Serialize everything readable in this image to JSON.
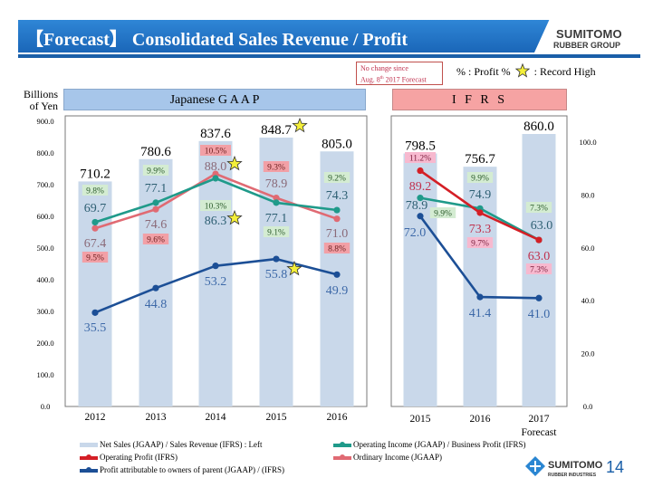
{
  "header": {
    "title": "【Forecast】 Consolidated Sales Revenue / Profit",
    "logo_line1": "SUMITOMO",
    "logo_line2": "RUBBER GROUP"
  },
  "note": {
    "line1": "No change since",
    "line2_prefix": "Aug. 8",
    "line2_sup": "th",
    "line2_suffix": " 2017 Forecast"
  },
  "key": {
    "percent_label": "% : Profit %",
    "star_label": ": Record  High"
  },
  "panels": {
    "jgaap": "Japanese G A A P",
    "ifrs": "I F R S"
  },
  "y_unit_line1": "Billions",
  "y_unit_line2": "of Yen",
  "footer": {
    "logo_line1": "SUMITOMO",
    "logo_line2": "RUBBER INDUSTRIES",
    "page_number": "14"
  },
  "colors": {
    "bar": "#c9d8ea",
    "operating_income": "#1f9a8a",
    "ordinary_income": "#e06a73",
    "operating_profit": "#d41f26",
    "net_profit": "#1c4f96",
    "pct_green_bg": "#d4ecd2",
    "pct_red_bg": "#f2a0a6",
    "pct_pink_bg": "#f7b9cf"
  },
  "chart_data": [
    {
      "type": "bar+line",
      "title": "Japanese GAAP",
      "categories": [
        "2012",
        "2013",
        "2014",
        "2015",
        "2016"
      ],
      "left_axis": {
        "label": "Billions of Yen",
        "range": [
          0,
          900
        ],
        "ticks": [
          "0.0",
          "100.0",
          "200.0",
          "300.0",
          "400.0",
          "500.0",
          "600.0",
          "700.0",
          "800.0",
          "900.0"
        ]
      },
      "right_axis": {
        "range": [
          0,
          100
        ]
      },
      "series": [
        {
          "name": "Net Sales (JGAAP)",
          "kind": "bar",
          "axis": "left",
          "values": [
            710.2,
            780.6,
            837.6,
            848.7,
            805.0
          ],
          "record_high": [
            false,
            false,
            false,
            true,
            false
          ]
        },
        {
          "name": "Operating Income (JGAAP)",
          "kind": "line",
          "axis": "right",
          "values": [
            69.7,
            77.1,
            86.3,
            77.1,
            74.3
          ],
          "profit_pct": [
            "9.8%",
            "9.9%",
            "10.3%",
            "9.1%",
            "9.2%"
          ],
          "record_high": [
            false,
            false,
            true,
            false,
            false
          ]
        },
        {
          "name": "Ordinary Income (JGAAP)",
          "kind": "line",
          "axis": "right",
          "values": [
            67.4,
            74.6,
            88.0,
            78.9,
            71.0
          ],
          "profit_pct": [
            "9.5%",
            "9.6%",
            "10.5%",
            "9.3%",
            "8.8%"
          ],
          "record_high": [
            false,
            false,
            true,
            false,
            false
          ]
        },
        {
          "name": "Profit attributable to owners of parent (JGAAP)",
          "kind": "line",
          "axis": "right",
          "values": [
            35.5,
            44.8,
            53.2,
            55.8,
            49.9
          ],
          "record_high": [
            false,
            false,
            false,
            true,
            false
          ]
        }
      ]
    },
    {
      "type": "bar+line",
      "title": "IFRS",
      "categories": [
        "2015",
        "2016",
        "2017"
      ],
      "category_sublabels": [
        "",
        "",
        "Forecast"
      ],
      "left_axis": {
        "range": [
          0,
          900
        ]
      },
      "right_axis": {
        "range": [
          0,
          100
        ],
        "ticks": [
          "0.0",
          "20.0",
          "40.0",
          "60.0",
          "80.0",
          "100.0"
        ]
      },
      "series": [
        {
          "name": "Sales Revenue (IFRS)",
          "kind": "bar",
          "axis": "left",
          "values": [
            798.5,
            756.7,
            860.0
          ],
          "record_high": [
            false,
            false,
            false
          ]
        },
        {
          "name": "Business Profit (IFRS)",
          "kind": "line",
          "axis": "right",
          "values": [
            78.9,
            74.9,
            63.0
          ],
          "profit_pct": [
            "9.9%",
            "9.9%",
            "7.3%"
          ]
        },
        {
          "name": "Operating Profit (IFRS)",
          "kind": "line",
          "axis": "right",
          "values": [
            89.2,
            73.3,
            63.0
          ],
          "profit_pct": [
            "11.2%",
            "9.7%",
            "7.3%"
          ]
        },
        {
          "name": "Profit attributable to owners of parent (IFRS)",
          "kind": "line",
          "axis": "right",
          "values": [
            72.0,
            41.4,
            41.0
          ]
        }
      ]
    }
  ],
  "legend": [
    {
      "key": "bar",
      "label": "Net Sales (JGAAP) / Sales Revenue (IFRS) : Left"
    },
    {
      "key": "operating_income",
      "label": "Operating Income (JGAAP) / Business Profit (IFRS)"
    },
    {
      "key": "operating_profit",
      "label": "Operating Profit (IFRS)"
    },
    {
      "key": "ordinary_income",
      "label": "Ordinary Income (JGAAP)"
    },
    {
      "key": "net_profit",
      "label": "Profit attributable to owners of parent (JGAAP) / (IFRS)"
    }
  ]
}
